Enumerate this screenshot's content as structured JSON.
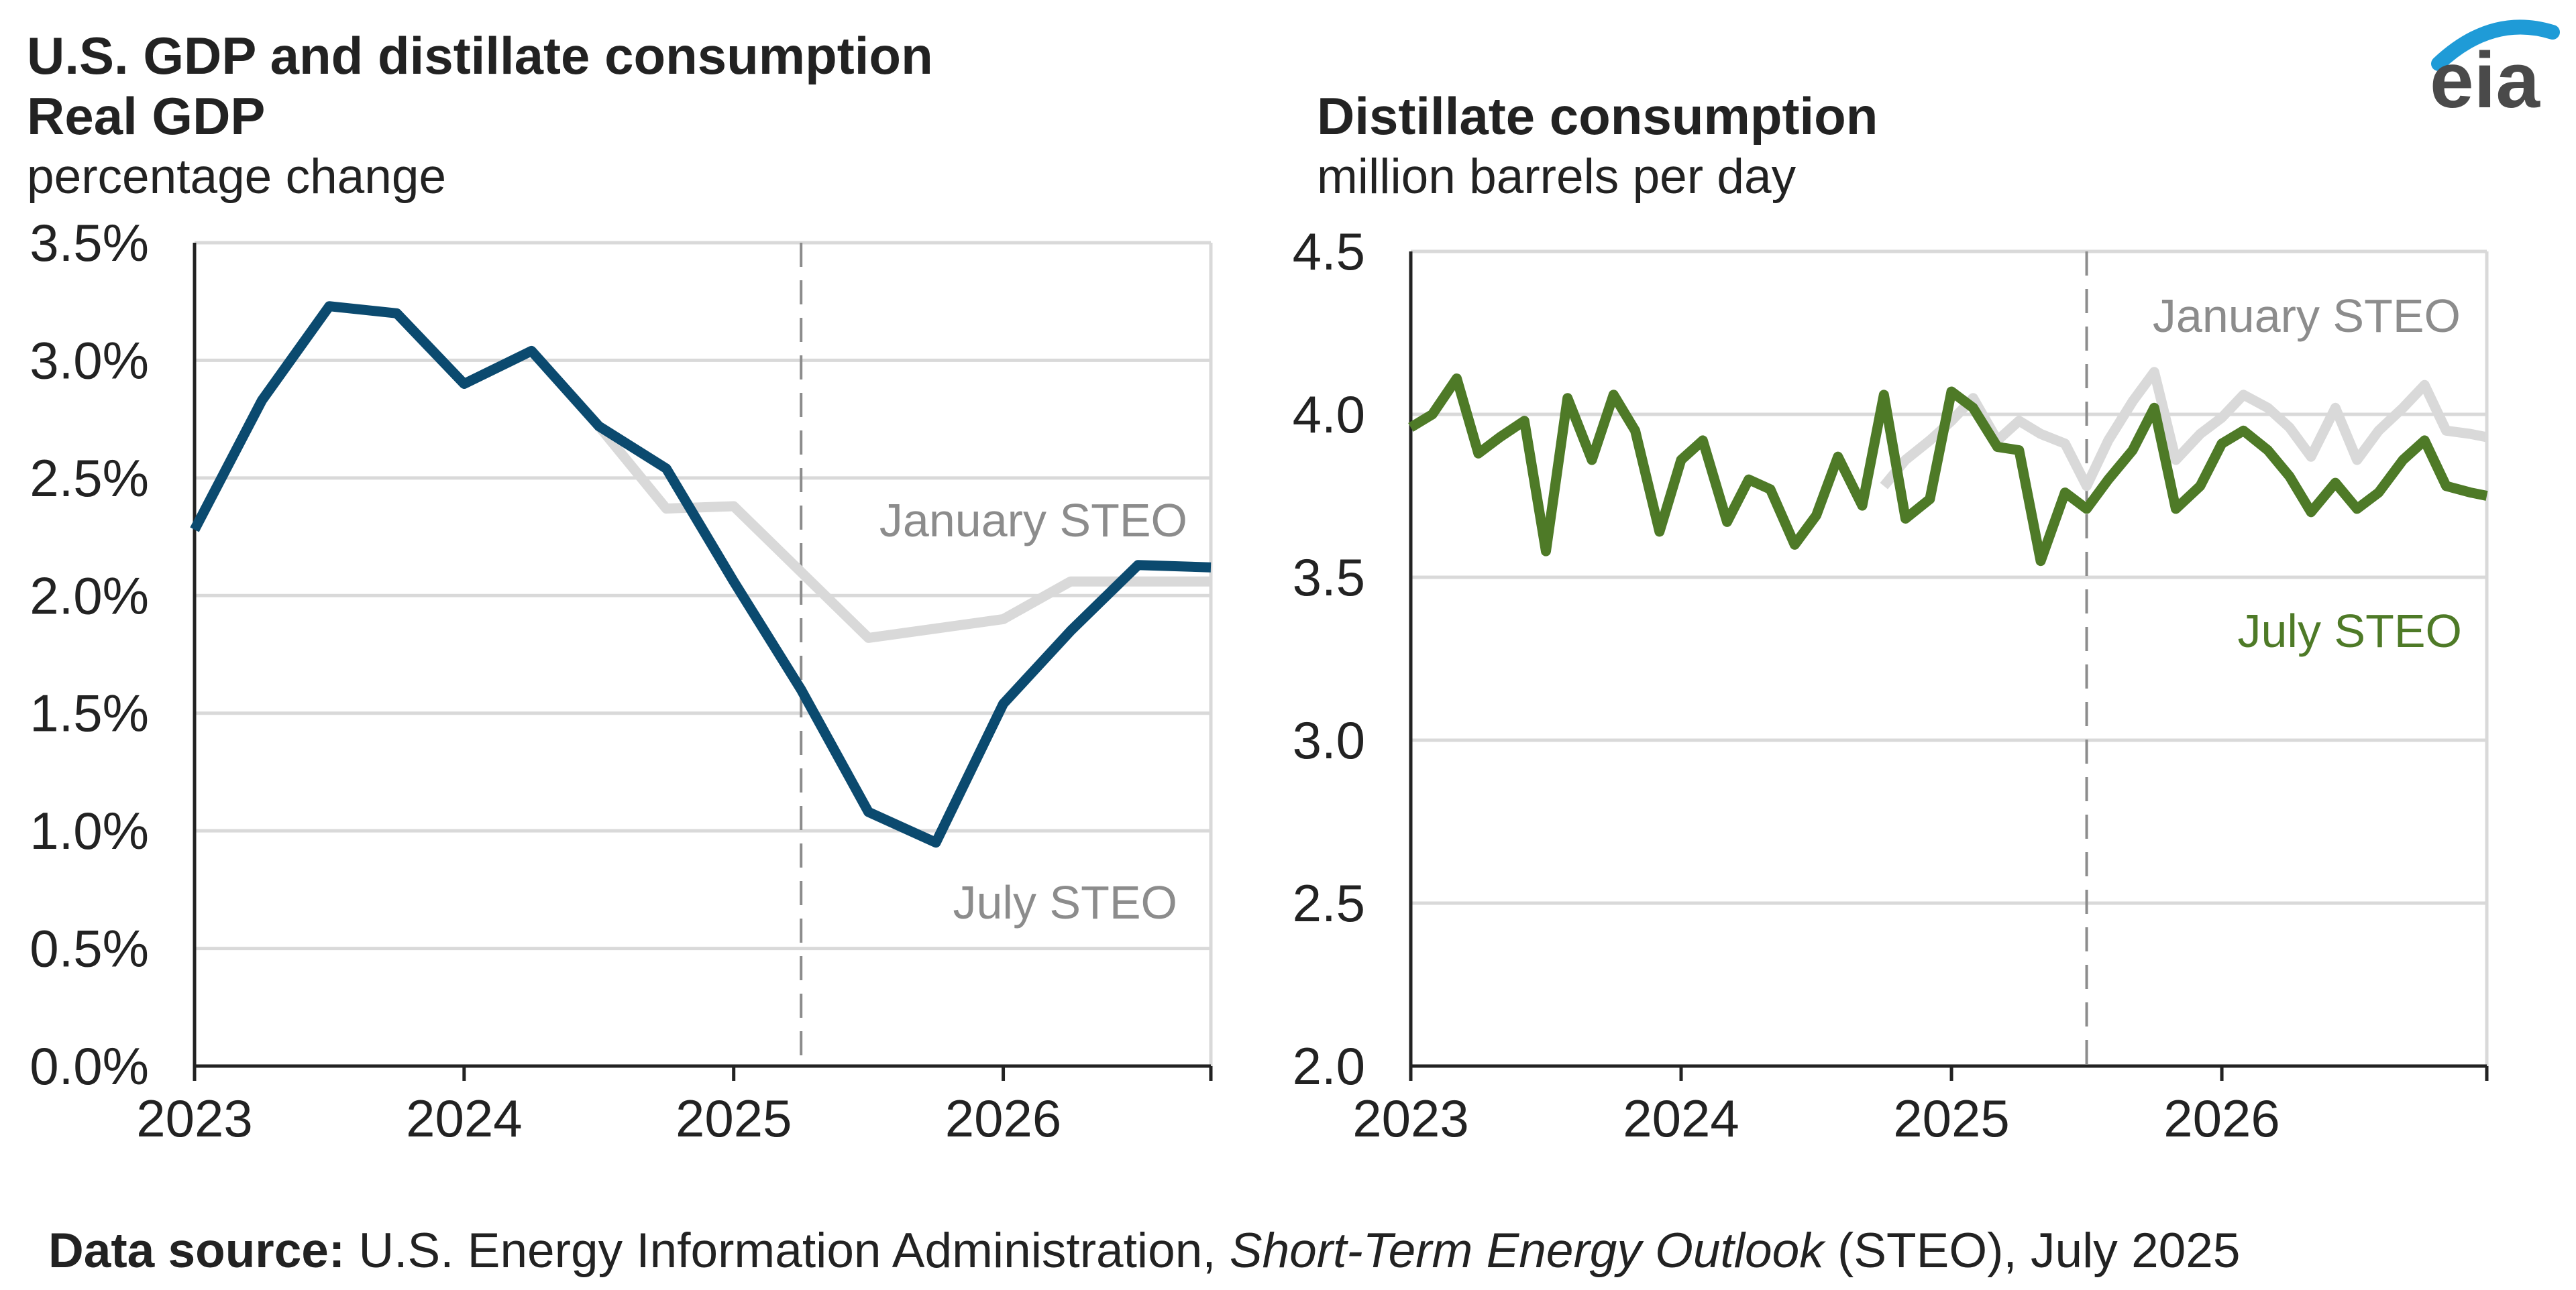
{
  "title": "U.S. GDP and distillate consumption",
  "logo": {
    "text": "eia",
    "color": "#4a4a4a",
    "arc_color": "#1f9bd7"
  },
  "source": {
    "label": "Data source:",
    "pre": "U.S. Energy Information Administration,",
    "italic": "Short-Term Energy Outlook",
    "post": "(STEO), July 2025"
  },
  "chart_data": [
    {
      "type": "line",
      "title": "Real GDP",
      "ylabel": "percentage change",
      "ylim": [
        0,
        3.5
      ],
      "xlim": [
        2023,
        2026.77
      ],
      "y_ticks": [
        "0.0%",
        "0.5%",
        "1.0%",
        "1.5%",
        "2.0%",
        "2.5%",
        "3.0%",
        "3.5%"
      ],
      "x_ticks": [
        "2023",
        "2024",
        "2025",
        "2026"
      ],
      "forecast_divider_x": 2025.25,
      "colors": {
        "january": "#d9d9d9",
        "july": "#0b4a6f"
      },
      "series": [
        {
          "name": "July STEO",
          "x": [
            2023.0,
            2023.25,
            2023.5,
            2023.75,
            2024.0,
            2024.25,
            2024.5,
            2024.75,
            2025.0,
            2025.25,
            2025.5,
            2025.75,
            2026.0,
            2026.25,
            2026.5,
            2026.77
          ],
          "values": [
            2.28,
            2.83,
            3.23,
            3.2,
            2.9,
            3.04,
            2.72,
            2.54,
            2.06,
            1.6,
            1.08,
            0.95,
            1.54,
            1.85,
            2.13,
            2.12
          ]
        },
        {
          "name": "January STEO",
          "x": [
            2024.5,
            2024.75,
            2025.0,
            2025.25,
            2025.5,
            2025.75,
            2026.0,
            2026.25,
            2026.5,
            2026.77
          ],
          "values": [
            2.72,
            2.37,
            2.38,
            2.1,
            1.82,
            1.86,
            1.9,
            2.06,
            2.06,
            2.06
          ]
        }
      ],
      "annotations": [
        "January STEO",
        "July STEO"
      ]
    },
    {
      "type": "line",
      "title": "Distillate consumption",
      "ylabel": "million barrels per day",
      "ylim": [
        2.0,
        4.5
      ],
      "xlim": [
        2023,
        2026.98
      ],
      "y_ticks": [
        "2.0",
        "2.5",
        "3.0",
        "3.5",
        "4.0",
        "4.5"
      ],
      "x_ticks": [
        "2023",
        "2024",
        "2025",
        "2026"
      ],
      "forecast_divider_x": 2025.5,
      "colors": {
        "january": "#d9d9d9",
        "july": "#4e7a27"
      },
      "series": [
        {
          "name": "July STEO",
          "x": [
            2023.0,
            2023.08,
            2023.17,
            2023.25,
            2023.33,
            2023.42,
            2023.5,
            2023.58,
            2023.67,
            2023.75,
            2023.83,
            2023.92,
            2024.0,
            2024.08,
            2024.17,
            2024.25,
            2024.33,
            2024.42,
            2024.5,
            2024.58,
            2024.67,
            2024.75,
            2024.83,
            2024.92,
            2025.0,
            2025.08,
            2025.17,
            2025.25,
            2025.33,
            2025.42,
            2025.5,
            2025.58,
            2025.67,
            2025.75,
            2025.83,
            2025.92,
            2026.0,
            2026.08,
            2026.17,
            2026.25,
            2026.33,
            2026.42,
            2026.5,
            2026.58,
            2026.67,
            2026.75,
            2026.83,
            2026.92,
            2026.98
          ],
          "values": [
            3.96,
            4.0,
            4.11,
            3.88,
            3.93,
            3.98,
            3.58,
            4.05,
            3.86,
            4.06,
            3.95,
            3.64,
            3.86,
            3.92,
            3.67,
            3.8,
            3.77,
            3.6,
            3.69,
            3.87,
            3.72,
            4.06,
            3.68,
            3.74,
            4.07,
            4.02,
            3.9,
            3.89,
            3.55,
            3.76,
            3.71,
            3.8,
            3.89,
            4.02,
            3.71,
            3.78,
            3.91,
            3.95,
            3.89,
            3.81,
            3.7,
            3.79,
            3.71,
            3.76,
            3.86,
            3.92,
            3.78,
            3.76,
            3.75
          ]
        },
        {
          "name": "January STEO",
          "x": [
            2024.75,
            2024.83,
            2024.92,
            2025.0,
            2025.08,
            2025.17,
            2025.25,
            2025.33,
            2025.42,
            2025.5,
            2025.58,
            2025.67,
            2025.75,
            2025.83,
            2025.92,
            2026.0,
            2026.08,
            2026.17,
            2026.25,
            2026.33,
            2026.42,
            2026.5,
            2026.58,
            2026.67,
            2026.75,
            2026.83,
            2026.92,
            2026.98
          ],
          "values": [
            3.78,
            3.86,
            3.92,
            3.98,
            4.05,
            3.92,
            3.98,
            3.94,
            3.91,
            3.78,
            3.92,
            4.04,
            4.13,
            3.86,
            3.94,
            3.99,
            4.06,
            4.02,
            3.96,
            3.87,
            4.02,
            3.86,
            3.95,
            4.02,
            4.09,
            3.95,
            3.94,
            3.93
          ]
        }
      ],
      "annotations": [
        "January STEO",
        "July STEO"
      ]
    }
  ]
}
